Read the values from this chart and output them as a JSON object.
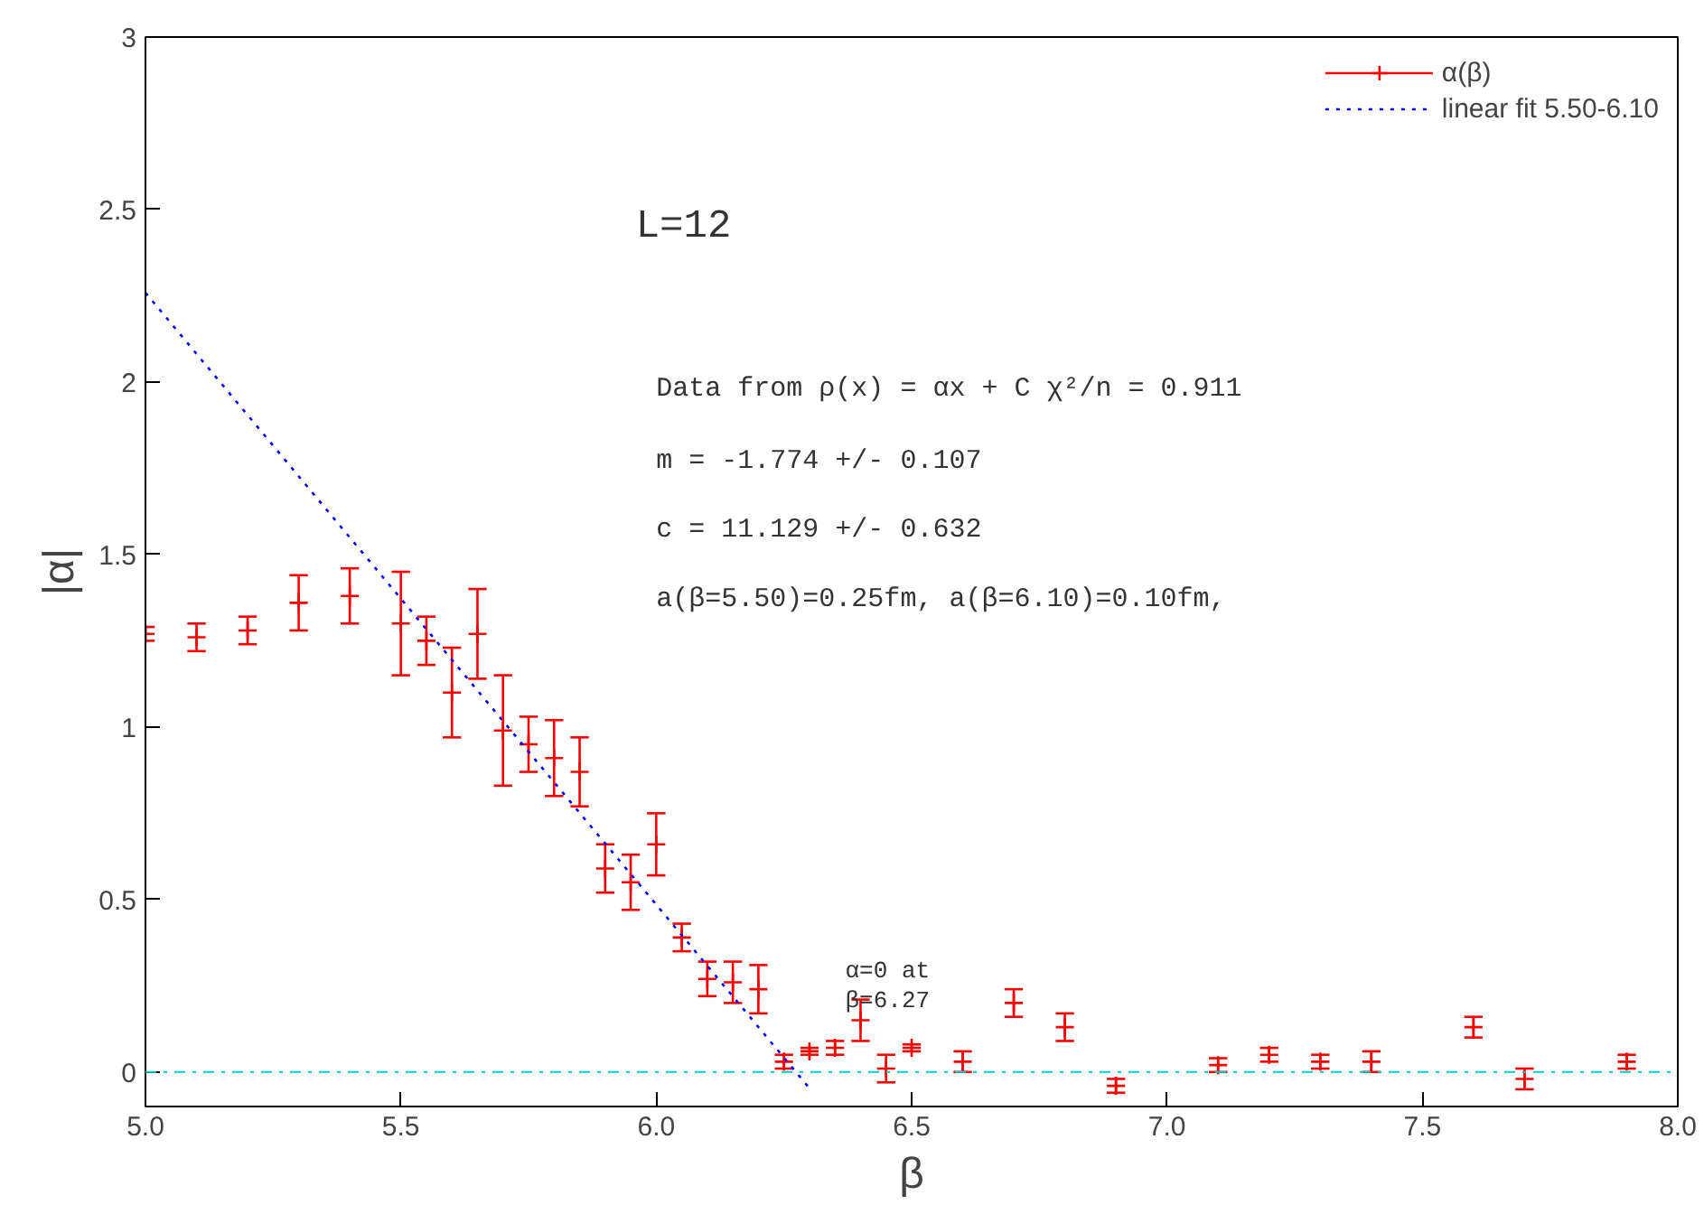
{
  "chart_data": {
    "type": "scatter",
    "xlabel": "β",
    "ylabel": "|α|",
    "xlim": [
      5.0,
      8.0
    ],
    "ylim": [
      -0.1,
      3
    ],
    "xticks": [
      {
        "value": 5.0,
        "label": "5.0"
      },
      {
        "value": 5.5,
        "label": "5.5"
      },
      {
        "value": 6.0,
        "label": "6.0"
      },
      {
        "value": 6.5,
        "label": "6.5"
      },
      {
        "value": 7.0,
        "label": "7.0"
      },
      {
        "value": 7.5,
        "label": "7.5"
      },
      {
        "value": 8.0,
        "label": "8.0"
      }
    ],
    "yticks": [
      0,
      0.5,
      1,
      1.5,
      2,
      2.5,
      3
    ],
    "grid": false,
    "legend": "top right",
    "series": [
      {
        "name": "α(β)",
        "marker": "cross",
        "color": "#ff0000",
        "x": [
          5.0,
          5.1,
          5.2,
          5.3,
          5.4,
          5.5,
          5.55,
          5.6,
          5.65,
          5.7,
          5.75,
          5.8,
          5.85,
          5.9,
          5.95,
          6.0,
          6.05,
          6.1,
          6.15,
          6.2,
          6.25,
          6.3,
          6.35,
          6.4,
          6.45,
          6.5,
          6.6,
          6.7,
          6.8,
          6.9,
          7.1,
          7.2,
          7.3,
          7.4,
          7.6,
          7.7,
          7.9
        ],
        "values": [
          1.27,
          1.26,
          1.28,
          1.36,
          1.38,
          1.3,
          1.25,
          1.1,
          1.27,
          0.99,
          0.95,
          0.91,
          0.87,
          0.59,
          0.55,
          0.66,
          0.39,
          0.27,
          0.26,
          0.24,
          0.03,
          0.06,
          0.07,
          0.15,
          0.01,
          0.07,
          0.03,
          0.2,
          0.13,
          -0.04,
          0.02,
          0.05,
          0.03,
          0.03,
          0.13,
          -0.02,
          0.03
        ],
        "errors": [
          0.02,
          0.04,
          0.04,
          0.08,
          0.08,
          0.15,
          0.07,
          0.13,
          0.13,
          0.16,
          0.08,
          0.11,
          0.1,
          0.07,
          0.08,
          0.09,
          0.04,
          0.05,
          0.06,
          0.07,
          0.02,
          0.01,
          0.02,
          0.06,
          0.04,
          0.01,
          0.03,
          0.04,
          0.04,
          0.02,
          0.02,
          0.02,
          0.02,
          0.03,
          0.03,
          0.03,
          0.02
        ]
      },
      {
        "name": "linear fit 5.50-6.10",
        "type": "line",
        "color": "#0000ff",
        "line_style": "dotted",
        "x": [
          5.0,
          6.3
        ],
        "values": [
          2.259,
          -0.047
        ]
      }
    ],
    "ref_lines": [
      {
        "axis": "y",
        "value": 0,
        "color": "#00cccc",
        "line_style": "dashdot"
      }
    ],
    "annotations": [
      "L=12",
      "Data from ρ(x) = αx + C  χ²/n = 0.911",
      "m = -1.774 +/- 0.107",
      "c = 11.129 +/- 0.632",
      "a(β=5.50)=0.25fm, a(β=6.10)=0.10fm,",
      "α=0 at\nβ=6.27"
    ]
  }
}
